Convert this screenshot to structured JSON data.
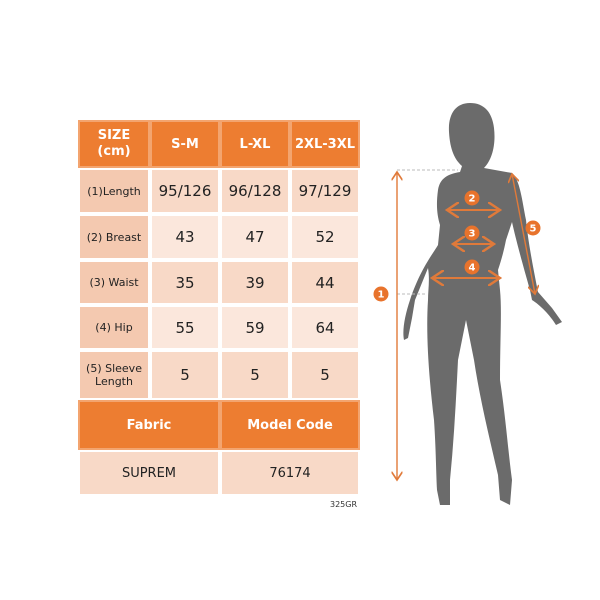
{
  "table": {
    "header": [
      "SIZE\n(cm)",
      "S-M",
      "L-XL",
      "2XL-3XL"
    ],
    "header_line1": "SIZE",
    "header_line2": "(cm)",
    "rows": [
      {
        "label": "(1)Length",
        "values": [
          "95/126",
          "96/128",
          "97/129"
        ]
      },
      {
        "label": "(2) Breast",
        "values": [
          "43",
          "47",
          "52"
        ]
      },
      {
        "label": "(3) Waist",
        "values": [
          "35",
          "39",
          "44"
        ]
      },
      {
        "label": "(4) Hip",
        "values": [
          "55",
          "59",
          "64"
        ]
      },
      {
        "label": "(5) Sleeve Length",
        "values": [
          "5",
          "5",
          "5"
        ]
      }
    ],
    "fabric_label": "Fabric",
    "model_code_label": "Model Code",
    "fabric_value": "SUPREM",
    "model_code_value": "76174"
  },
  "weight_note": "325GR",
  "figure": {
    "markers": [
      "1",
      "2",
      "3",
      "4",
      "5"
    ]
  },
  "colors": {
    "accent": "#ed7d31",
    "silhouette": "#6b6b6b",
    "cell_light": "#fbe7dc",
    "cell_dark": "#f8d9c7"
  }
}
